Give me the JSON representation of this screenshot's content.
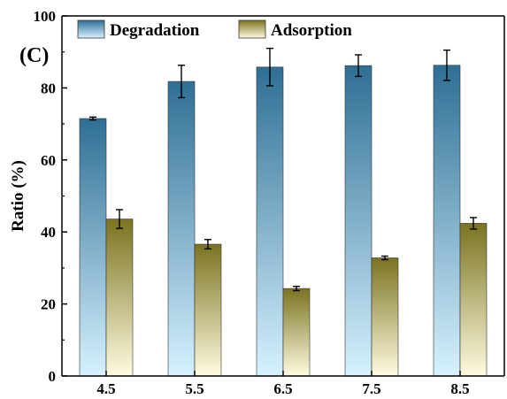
{
  "panel_label": "(C)",
  "chart_data": {
    "type": "bar",
    "categories": [
      "4.5",
      "5.5",
      "6.5",
      "7.5",
      "8.5"
    ],
    "series": [
      {
        "name": "Degradation",
        "values": [
          71.5,
          81.8,
          85.8,
          86.2,
          86.3
        ],
        "errors": [
          0.4,
          4.5,
          5.2,
          3.0,
          4.2
        ],
        "gradient": [
          "#2e6f94",
          "#d6f1ff"
        ]
      },
      {
        "name": "Adsorption",
        "values": [
          43.6,
          36.6,
          24.3,
          32.8,
          42.4
        ],
        "errors": [
          2.6,
          1.3,
          0.6,
          0.5,
          1.6
        ],
        "gradient": [
          "#7a7320",
          "#fffbe0"
        ]
      }
    ],
    "title": "",
    "xlabel": "",
    "ylabel": "Ratio (%)",
    "ylim": [
      0,
      100
    ],
    "yticks": [
      0,
      20,
      40,
      60,
      80,
      100
    ],
    "grid": false,
    "legend_position": "top"
  }
}
